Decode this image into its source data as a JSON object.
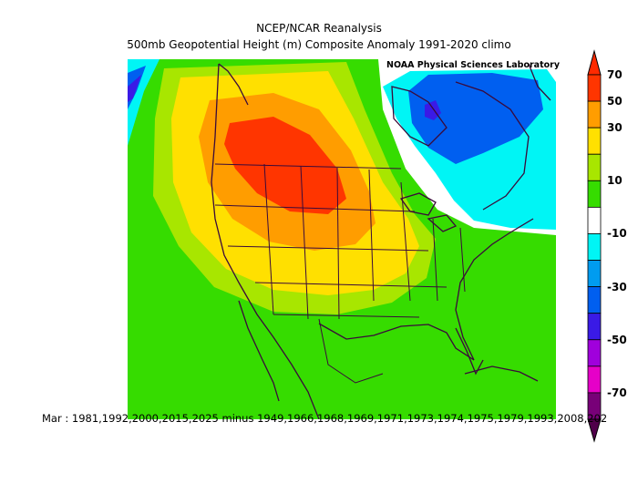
{
  "title": "NCEP/NCAR Reanalysis",
  "subtitle": "500mb Geopotential Height (m) Composite Anomaly 1991-2020 climo",
  "credit": "NOAA Physical Sciences Laboratory",
  "caption": "Mar : 1981,1992,2000,2015,2025 minus 1949,1966,1968,1969,1971,1973,1974,1975,1979,1993,2008,202",
  "colorbar": {
    "levels": [
      {
        "label": "70",
        "color": "#ff3500"
      },
      {
        "label": "50",
        "color": "#ff9d00"
      },
      {
        "label": "30",
        "color": "#ffe000"
      },
      {
        "label": "",
        "color": "#a8e600"
      },
      {
        "label": "10",
        "color": "#36dc00"
      },
      {
        "label": "",
        "color": "#ffffff"
      },
      {
        "label": "-10",
        "color": "#00f5f5"
      },
      {
        "label": "",
        "color": "#009cf0"
      },
      {
        "label": "-30",
        "color": "#005ff0"
      },
      {
        "label": "",
        "color": "#3a1ae6"
      },
      {
        "label": "-50",
        "color": "#a000dc"
      },
      {
        "label": "",
        "color": "#e600c8"
      },
      {
        "label": "-70",
        "color": "#780078"
      }
    ],
    "top_arrow_color": "#ff2a00",
    "bottom_arrow_color": "#50004a"
  },
  "map_colors": {
    "land_outline": "#3a0a3a",
    "positive_core": "#ff3500"
  }
}
